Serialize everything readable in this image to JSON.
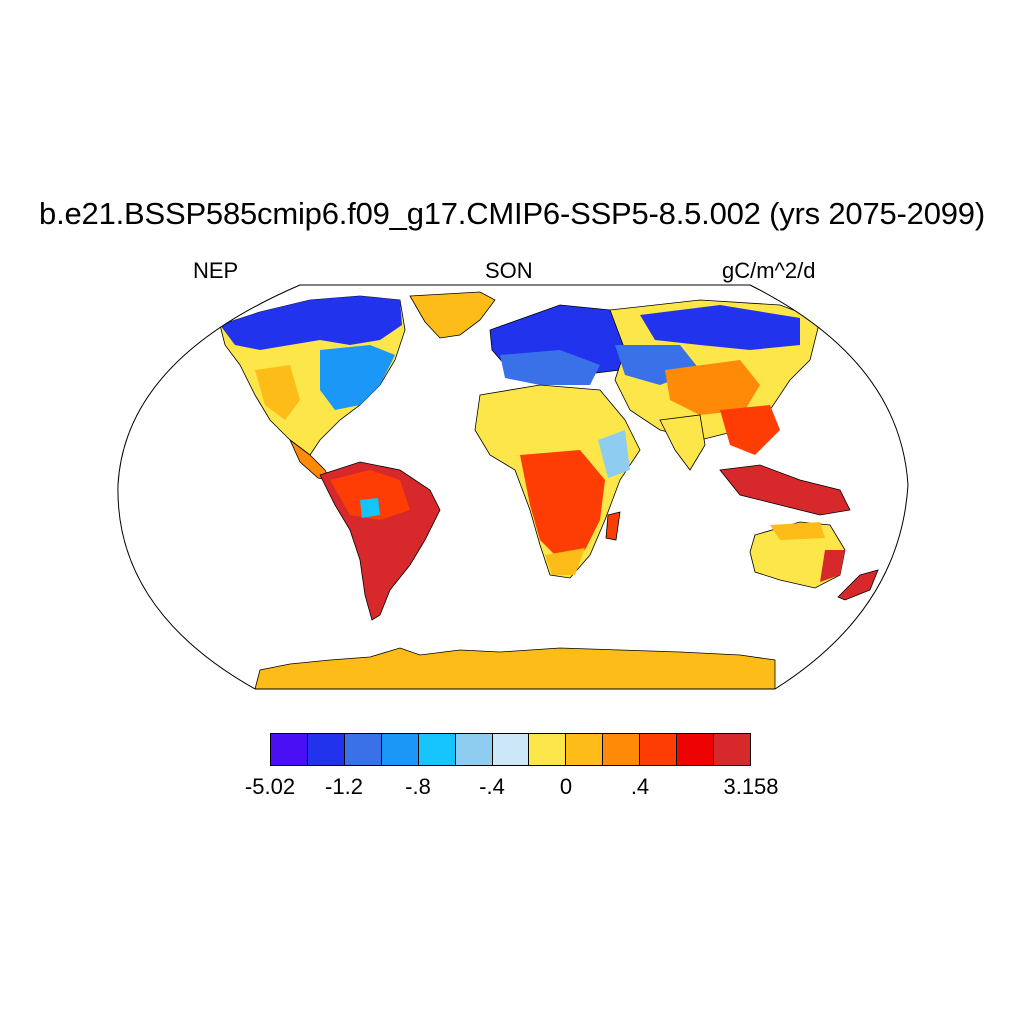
{
  "title": "b.e21.BSSP585cmip6.f09_g17.CMIP6-SSP5-8.5.002 (yrs 2075-2099)",
  "variable": "NEP",
  "season": "SON",
  "units": "gC/m^2/d",
  "colorbar": {
    "colors": [
      "#4a0ff5",
      "#2233ee",
      "#3b71e8",
      "#1a97f7",
      "#14c4fa",
      "#8ecdf0",
      "#cce8f8",
      "#fde64a",
      "#fdbc17",
      "#fe8a07",
      "#fe3d05",
      "#ee0304",
      "#d7282c"
    ],
    "tick_labels": [
      "-5.02",
      "-1.2",
      "-.8",
      "-.4",
      "0",
      ".4",
      "3.158"
    ]
  },
  "map_colors": {
    "ocean": "#ffffff",
    "coast": "#000000",
    "strong_negative": "#2233ee",
    "negative": "#3b71e8",
    "weak_negative": "#8ecdf0",
    "near_zero": "#fde64a",
    "weak_positive": "#fdbc17",
    "positive": "#fe3d05",
    "strong_positive": "#d7282c"
  }
}
